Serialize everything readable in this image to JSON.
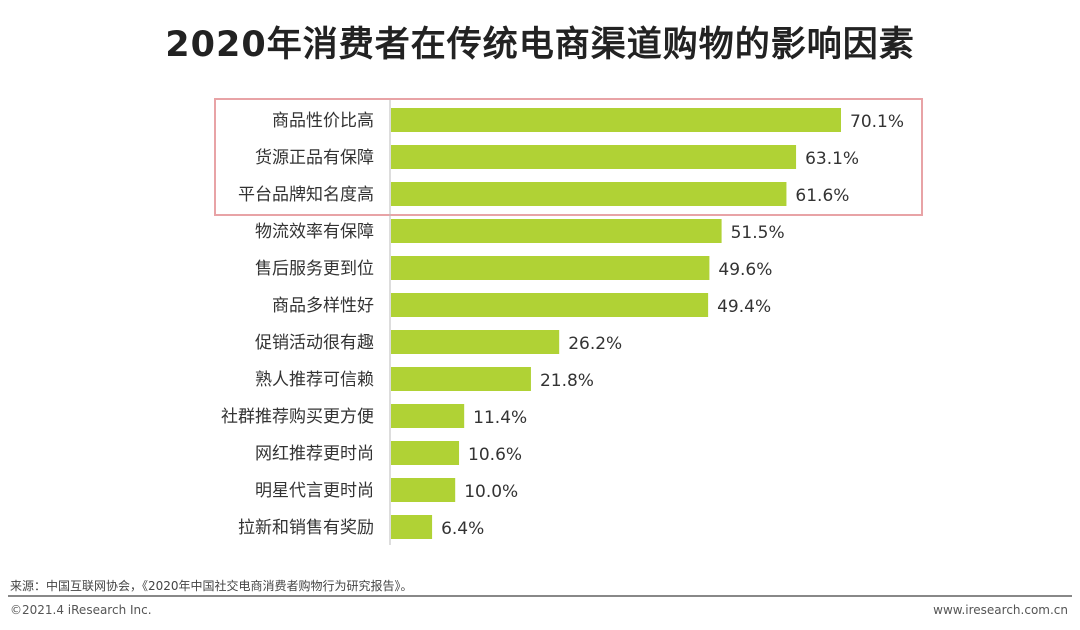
{
  "chart_data": {
    "type": "bar",
    "orientation": "horizontal",
    "title": "2020年消费者在传统电商渠道购物的影响因素",
    "categories": [
      "商品性价比高",
      "货源正品有保障",
      "平台品牌知名度高",
      "物流效率有保障",
      "售后服务更到位",
      "商品多样性好",
      "促销活动很有趣",
      "熟人推荐可信赖",
      "社群推荐购买更方便",
      "网红推荐更时尚",
      "明星代言更时尚",
      "拉新和销售有奖励"
    ],
    "values": [
      70.1,
      63.1,
      61.6,
      51.5,
      49.6,
      49.4,
      26.2,
      21.8,
      11.4,
      10.6,
      10.0,
      6.4
    ],
    "labels": [
      "70.1%",
      "63.1%",
      "61.6%",
      "51.5%",
      "49.6%",
      "49.4%",
      "26.2%",
      "21.8%",
      "11.4%",
      "10.6%",
      "10.0%",
      "6.4%"
    ],
    "unit": "%",
    "xlim": [
      0,
      70.1
    ],
    "grid": false,
    "bar_color": "#b0d235",
    "highlight_box_color": "#e8a3a6",
    "highlighted_categories": [
      "商品性价比高",
      "货源正品有保障",
      "平台品牌知名度高"
    ]
  },
  "footer": {
    "source": "来源：中国互联网协会，《2020年中国社交电商消费者购物行为研究报告》。",
    "copyright": "©2021.4 iResearch Inc.",
    "website": "www.iresearch.com.cn"
  }
}
